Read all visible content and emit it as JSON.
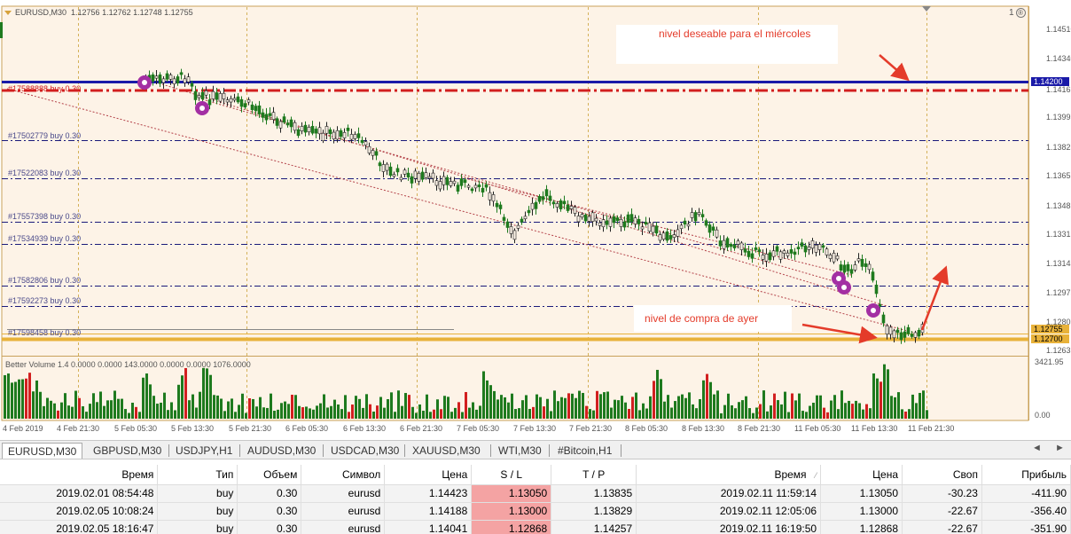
{
  "chart": {
    "symbol": "EURUSD,M30",
    "ohlc": "1.12756 1.12762 1.12748 1.12755",
    "window_badge": "1",
    "notes": {
      "top": "nivel deseable para el miércoles",
      "bottom": "nivel de compra de ayer"
    },
    "price_ticks": [
      "1.14510",
      "1.14340",
      "1.14165",
      "1.13995",
      "1.13825",
      "1.13655",
      "1.13485",
      "1.13315",
      "1.13145",
      "1.12975",
      "1.12805",
      "1.12635"
    ],
    "price_tags": {
      "blue": "1.14200",
      "current": "1.12755",
      "gold": "1.12700"
    },
    "order_labels": [
      "#17588888 buy 0.30",
      "#17502779 buy 0.30",
      "#17522083 buy 0.30",
      "#17557398 buy 0.30",
      "#17534939 buy 0.30",
      "#17582806 buy 0.30",
      "#17592273 buy 0.30",
      "#17598458 buy 0.30"
    ],
    "indicator": {
      "title": "Better Volume 1.4 0.0000 0.0000 143.0000 0.0000 0.0000 1076.0000",
      "max_tick": "3421.95",
      "min_tick": "0.00"
    },
    "time_labels": [
      "4 Feb 2019",
      "4 Feb 21:30",
      "5 Feb 05:30",
      "5 Feb 13:30",
      "5 Feb 21:30",
      "6 Feb 05:30",
      "6 Feb 13:30",
      "6 Feb 21:30",
      "7 Feb 05:30",
      "7 Feb 13:30",
      "7 Feb 21:30",
      "8 Feb 05:30",
      "8 Feb 13:30",
      "8 Feb 21:30",
      "11 Feb 05:30",
      "11 Feb 13:30",
      "11 Feb 21:30"
    ],
    "colors": {
      "blue_line": "#1a1aa8",
      "red_line": "#d21f1f",
      "gold_line": "#e8b23a",
      "bull": "#1e7a1e",
      "bear": "#d21f1f",
      "annotation": "#e43b2a"
    }
  },
  "tabs": [
    "EURUSD,M30",
    "GBPUSD,M30",
    "USDJPY,H1",
    "AUDUSD,M30",
    "USDCAD,M30",
    "XAUUSD,M30",
    "WTI,M30",
    "#Bitcoin,H1"
  ],
  "tab_arrows": {
    "left": "◄",
    "right": "►"
  },
  "table": {
    "headers": [
      "Время",
      "Тип",
      "Объем",
      "Символ",
      "Цена",
      "S / L",
      "T / P",
      "Время",
      "Цена",
      "Своп",
      "Прибыль"
    ],
    "sort_mark": "⁄",
    "rows": [
      [
        "2019.02.01 08:54:48",
        "buy",
        "0.30",
        "eurusd",
        "1.14423",
        "1.13050",
        "1.13835",
        "2019.02.11 11:59:14",
        "1.13050",
        "-30.23",
        "-411.90"
      ],
      [
        "2019.02.05 10:08:24",
        "buy",
        "0.30",
        "eurusd",
        "1.14188",
        "1.13000",
        "1.13829",
        "2019.02.11 12:05:06",
        "1.13000",
        "-22.67",
        "-356.40"
      ],
      [
        "2019.02.05 18:16:47",
        "buy",
        "0.30",
        "eurusd",
        "1.14041",
        "1.12868",
        "1.14257",
        "2019.02.11 16:19:50",
        "1.12868",
        "-22.67",
        "-351.90"
      ]
    ]
  }
}
